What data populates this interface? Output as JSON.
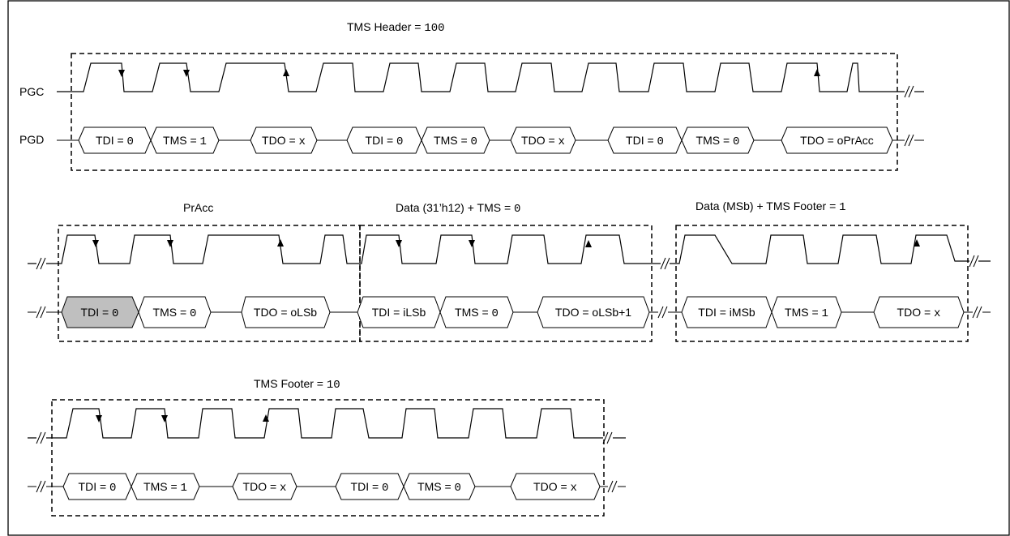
{
  "signals": {
    "clock": "PGC",
    "data": "PGD"
  },
  "sections": [
    {
      "id": "tms-header",
      "title": "TMS Header = ",
      "title_value": "100",
      "fields": [
        {
          "name": "TDI = ",
          "value": "0"
        },
        {
          "name": "TMS = ",
          "value": "1"
        },
        {
          "name": "TDO = ",
          "value": "x"
        },
        {
          "name": "TDI = ",
          "value": "0"
        },
        {
          "name": "TMS = ",
          "value": "0"
        },
        {
          "name": "TDO = ",
          "value": "x"
        },
        {
          "name": "TDI = ",
          "value": "0"
        },
        {
          "name": "TMS = ",
          "value": "0"
        },
        {
          "name": "TDO = oPrAcc",
          "value": ""
        }
      ]
    },
    {
      "id": "pracc",
      "title": "PrAcc",
      "title_value": "",
      "fields": [
        {
          "name": "TDI = ",
          "value": "0",
          "shaded": true
        },
        {
          "name": "TMS = ",
          "value": "0"
        },
        {
          "name": "TDO = oLSb",
          "value": ""
        }
      ]
    },
    {
      "id": "data-lsb",
      "title": "Data (31’h12) + TMS = ",
      "title_value": "0",
      "fields": [
        {
          "name": "TDI = iLSb",
          "value": ""
        },
        {
          "name": "TMS = ",
          "value": "0"
        },
        {
          "name": "TDO = oLSb+1",
          "value": ""
        }
      ]
    },
    {
      "id": "data-msb",
      "title": "Data (MSb) + TMS Footer = ",
      "title_value": "1",
      "fields": [
        {
          "name": "TDI = iMSb",
          "value": ""
        },
        {
          "name": "TMS = ",
          "value": "1"
        },
        {
          "name": "TDO = ",
          "value": "x"
        }
      ]
    },
    {
      "id": "tms-footer",
      "title": "TMS Footer = ",
      "title_value": "10",
      "fields": [
        {
          "name": "TDI = ",
          "value": "0"
        },
        {
          "name": "TMS = ",
          "value": "1"
        },
        {
          "name": "TDO = ",
          "value": "x"
        },
        {
          "name": "TDI = ",
          "value": "0"
        },
        {
          "name": "TMS = ",
          "value": "0"
        },
        {
          "name": "TDO = ",
          "value": "x"
        }
      ]
    }
  ]
}
